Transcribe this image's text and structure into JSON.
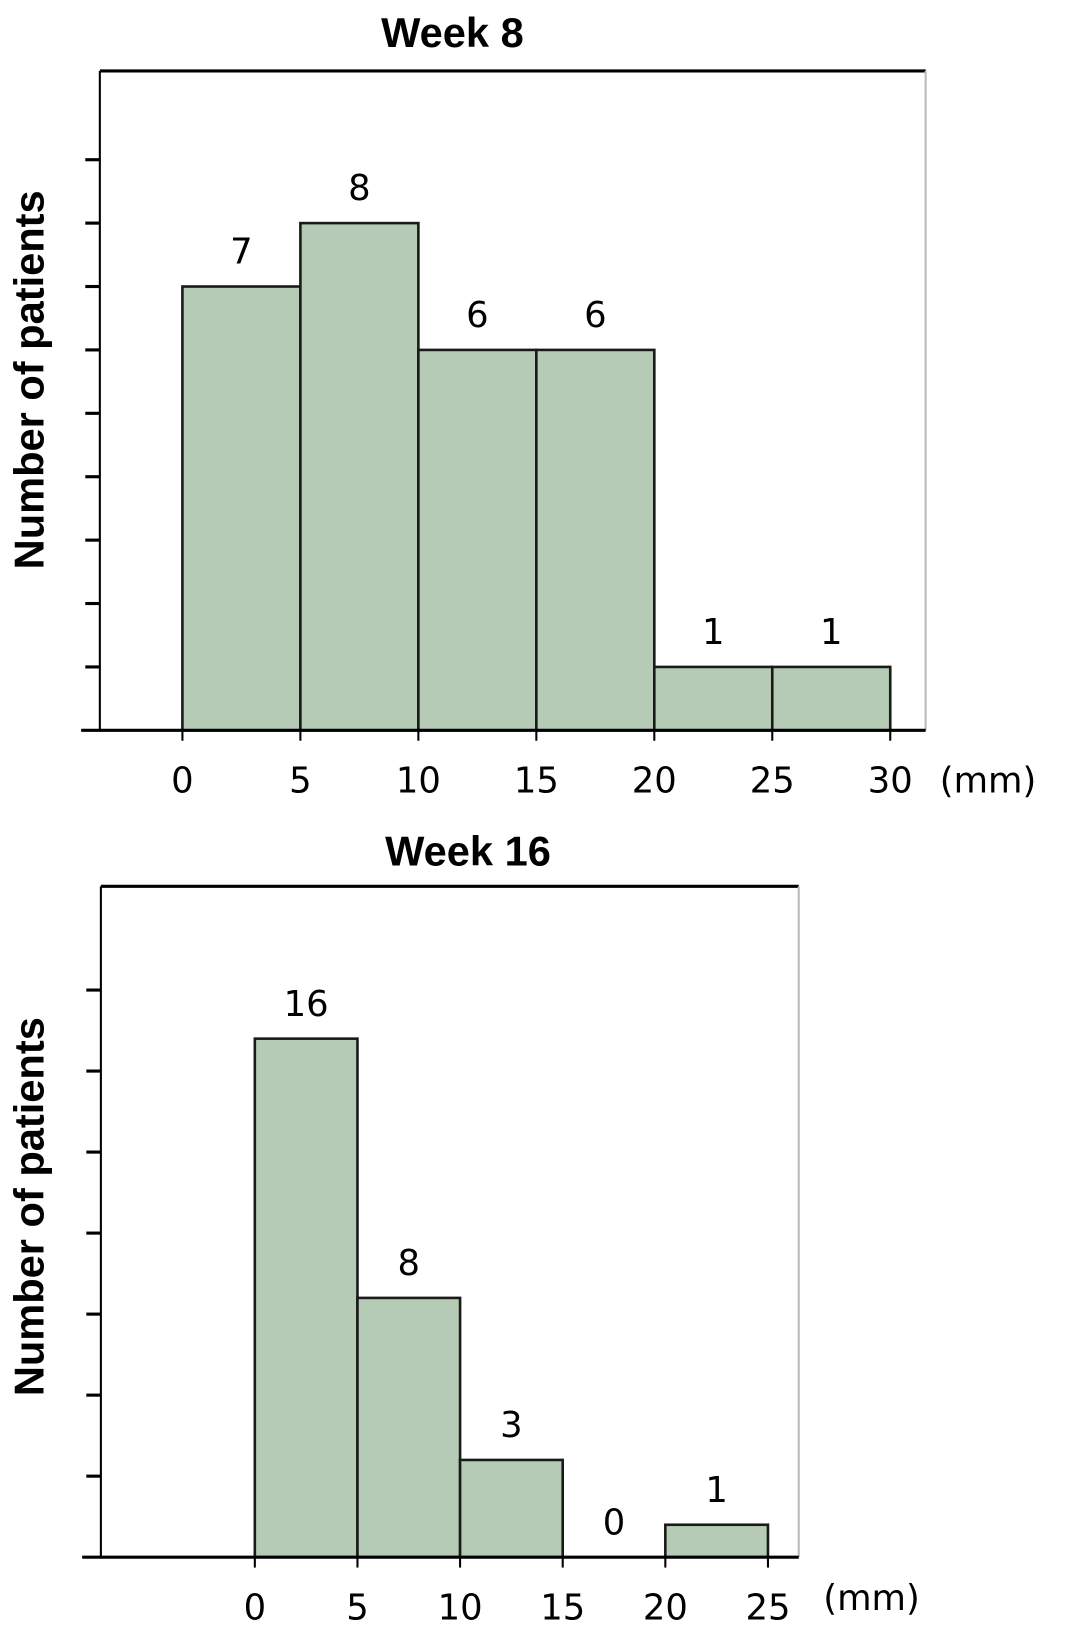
{
  "chart_data": [
    {
      "type": "bar",
      "title": "Week 8",
      "ylabel": "Number of patients",
      "xunit": "(mm)",
      "bin_edges": [
        0,
        5,
        10,
        15,
        20,
        25,
        30
      ],
      "x_tick_labels": [
        "0",
        "5",
        "10",
        "15",
        "20",
        "25",
        "30"
      ],
      "values": [
        7,
        8,
        6,
        6,
        1,
        1
      ],
      "data_labels": [
        "7",
        "8",
        "6",
        "6",
        "1",
        "1"
      ],
      "ylim": [
        0,
        10.4
      ],
      "y_tick_step": 1,
      "y_tick_max": 9,
      "xlim": [
        -3.5,
        31.5
      ],
      "grid": false,
      "bar_color": "#b6cbb5",
      "edge_color": "#1a1a1a"
    },
    {
      "type": "bar",
      "title": "Week 16",
      "ylabel": "Number of patients",
      "xunit": "(mm)",
      "bin_edges": [
        0,
        5,
        10,
        15,
        20,
        25
      ],
      "x_tick_labels": [
        "0",
        "5",
        "10",
        "15",
        "20",
        "25"
      ],
      "values": [
        16,
        8,
        3,
        0,
        1
      ],
      "data_labels": [
        "16",
        "8",
        "3",
        "0",
        "1"
      ],
      "ylim": [
        0,
        20.7
      ],
      "y_tick_step": 2.5,
      "y_tick_max": 17.5,
      "xlim": [
        -7.5,
        26.5
      ],
      "grid": false,
      "bar_color": "#b6cbb5",
      "edge_color": "#1a1a1a"
    }
  ]
}
